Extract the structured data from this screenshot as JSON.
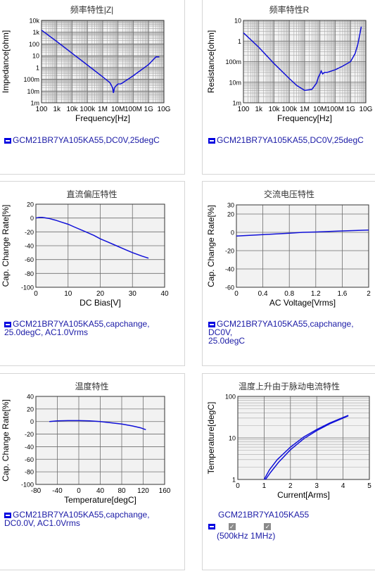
{
  "colors": {
    "curve": "#1010d8",
    "grid": "#6e6e6e",
    "plot_bg": "#f2f2f2",
    "legend_text": "#1a1aa6"
  },
  "panels": [
    {
      "id": "p1",
      "title": "频率特性|Z|",
      "legend": [
        "GCM21BR7YA105KA55,DC0V,25degC"
      ]
    },
    {
      "id": "p2",
      "title": "频率特性R",
      "legend": [
        "GCM21BR7YA105KA55,DC0V,25degC"
      ]
    },
    {
      "id": "p3",
      "title": "直流偏压特性",
      "legend": [
        "GCM21BR7YA105KA55,capchange,",
        "25.0degC, AC1.0Vrms"
      ]
    },
    {
      "id": "p4",
      "title": "交流电压特性",
      "legend": [
        "GCM21BR7YA105KA55,capchange, DC0V,",
        "25.0degC"
      ]
    },
    {
      "id": "p5",
      "title": "温度特性",
      "legend": [
        "GCM21BR7YA105KA55,capchange,",
        "DC0.0V, AC1.0Vrms"
      ]
    },
    {
      "id": "p6",
      "title": "温度上升由于脉动电流特性",
      "legend_name": "GCM21BR7YA105KA55",
      "checks": [
        "500kHz",
        "1MHz"
      ],
      "check_open": "(",
      "check_close": ")"
    }
  ],
  "chart_data": [
    {
      "id": "p1",
      "type": "line",
      "title": "频率特性|Z|",
      "xlabel": "Frequency[Hz]",
      "ylabel": "Impedance[ohm]",
      "xscale": "log",
      "yscale": "log",
      "xlim": [
        100,
        10000000000
      ],
      "ylim": [
        0.001,
        10000
      ],
      "xticks": [
        "100",
        "1k",
        "10k",
        "100k",
        "1M",
        "10M",
        "100M",
        "1G",
        "10G"
      ],
      "yticks": [
        "10k",
        "1k",
        "100",
        "10",
        "1",
        "100m",
        "10m",
        "1m"
      ],
      "grid": true,
      "series": [
        {
          "x": [
            100,
            1000,
            10000,
            100000,
            1000000,
            3000000,
            4500000,
            5000000,
            6000000,
            8000000,
            10000000,
            15000000,
            20000000,
            100000000,
            1000000000,
            3000000000,
            5000000000
          ],
          "y": [
            1500,
            160,
            16,
            1.6,
            0.16,
            0.05,
            0.018,
            0.007,
            0.02,
            0.03,
            0.04,
            0.04,
            0.05,
            0.2,
            1.8,
            8,
            8
          ]
        }
      ]
    },
    {
      "id": "p2",
      "type": "line",
      "title": "频率特性R",
      "xlabel": "Frequency[Hz]",
      "ylabel": "Resistance[ohm]",
      "xscale": "log",
      "yscale": "log",
      "xlim": [
        100,
        10000000000
      ],
      "ylim": [
        0.001,
        10
      ],
      "xticks": [
        "100",
        "1k",
        "10k",
        "100k",
        "1M",
        "10M",
        "100M",
        "1G",
        "10G"
      ],
      "yticks": [
        "10",
        "1",
        "100m",
        "10m",
        "1m"
      ],
      "grid": true,
      "series": [
        {
          "x": [
            100,
            1000,
            10000,
            100000,
            300000,
            1000000,
            3000000,
            6000000,
            8000000,
            10000000,
            12000000,
            15000000,
            20000000,
            30000000,
            100000000,
            300000000,
            1000000000,
            2000000000,
            3000000000,
            4000000000,
            5000000000
          ],
          "y": [
            2.5,
            0.5,
            0.08,
            0.015,
            0.007,
            0.004,
            0.0045,
            0.009,
            0.018,
            0.025,
            0.035,
            0.025,
            0.03,
            0.03,
            0.04,
            0.06,
            0.1,
            0.25,
            0.7,
            2,
            5
          ]
        }
      ]
    },
    {
      "id": "p3",
      "type": "line",
      "title": "直流偏压特性",
      "xlabel": "DC Bias[V]",
      "ylabel": "Cap. Change Rate[%]",
      "xlim": [
        0,
        40
      ],
      "ylim": [
        -100,
        20
      ],
      "xticks": [
        "0",
        "10",
        "20",
        "30",
        "40"
      ],
      "yticks": [
        "20",
        "0",
        "-20",
        "-40",
        "-60",
        "-80",
        "-100"
      ],
      "grid": true,
      "series": [
        {
          "x": [
            0,
            1,
            2,
            4,
            6,
            8,
            10,
            12,
            15,
            18,
            20,
            22,
            25,
            28,
            30,
            33,
            35
          ],
          "y": [
            0,
            1,
            1,
            -0.5,
            -3,
            -6,
            -9,
            -13,
            -19,
            -25,
            -30,
            -34,
            -40,
            -46,
            -50,
            -55,
            -58
          ]
        }
      ]
    },
    {
      "id": "p4",
      "type": "line",
      "title": "交流电压特性",
      "xlabel": "AC Voltage[Vrms]",
      "ylabel": "Cap. Change Rate[%]",
      "xlim": [
        0,
        2
      ],
      "ylim": [
        -60,
        30
      ],
      "xticks": [
        "0",
        "0.4",
        "0.8",
        "1.2",
        "1.6",
        "2"
      ],
      "yticks": [
        "30",
        "20",
        "0",
        "-20",
        "-40",
        "-60"
      ],
      "grid": true,
      "series": [
        {
          "x": [
            0,
            0.2,
            0.4,
            0.6,
            0.8,
            1.0,
            1.2,
            1.4,
            1.6,
            1.8,
            2.0
          ],
          "y": [
            -4,
            -3.2,
            -2.5,
            -1.7,
            -1,
            0,
            0.4,
            1,
            1.5,
            2,
            2.5
          ]
        }
      ]
    },
    {
      "id": "p5",
      "type": "line",
      "title": "温度特性",
      "xlabel": "Temperature[degC]",
      "ylabel": "Cap. Change Rate[%]",
      "xlim": [
        -80,
        160
      ],
      "ylim": [
        -100,
        40
      ],
      "xticks": [
        "-80",
        "-40",
        "0",
        "40",
        "80",
        "120",
        "160"
      ],
      "yticks": [
        "40",
        "20",
        "0",
        "-20",
        "-40",
        "-60",
        "-80",
        "-100"
      ],
      "grid": true,
      "series": [
        {
          "x": [
            -55,
            -40,
            -20,
            0,
            20,
            40,
            60,
            80,
            100,
            115,
            125
          ],
          "y": [
            0,
            1,
            1.5,
            1.5,
            1,
            0,
            -2,
            -4,
            -7,
            -10,
            -13
          ]
        }
      ]
    },
    {
      "id": "p6",
      "type": "line",
      "title": "温度上升由于脉动电流特性",
      "xlabel": "Current[Arms]",
      "ylabel": "Temperature[degC]",
      "xlim": [
        0,
        5
      ],
      "ylim": [
        1,
        100
      ],
      "yscale": "log",
      "xticks": [
        "0",
        "1",
        "2",
        "3",
        "4",
        "5"
      ],
      "yticks": [
        "100",
        "10",
        "1"
      ],
      "grid": true,
      "series": [
        {
          "name": "500kHz",
          "x": [
            1.0,
            1.2,
            1.5,
            2.0,
            2.5,
            3.0,
            3.5,
            4.0,
            4.2
          ],
          "y": [
            1,
            1.7,
            3.0,
            6.0,
            10.5,
            16,
            23,
            31,
            35
          ]
        },
        {
          "name": "1MHz",
          "x": [
            1.05,
            1.25,
            1.55,
            2.0,
            2.5,
            3.0,
            3.5,
            4.0,
            4.2
          ],
          "y": [
            1,
            1.5,
            2.6,
            5.2,
            9.5,
            15,
            22,
            30,
            34
          ]
        }
      ]
    }
  ]
}
